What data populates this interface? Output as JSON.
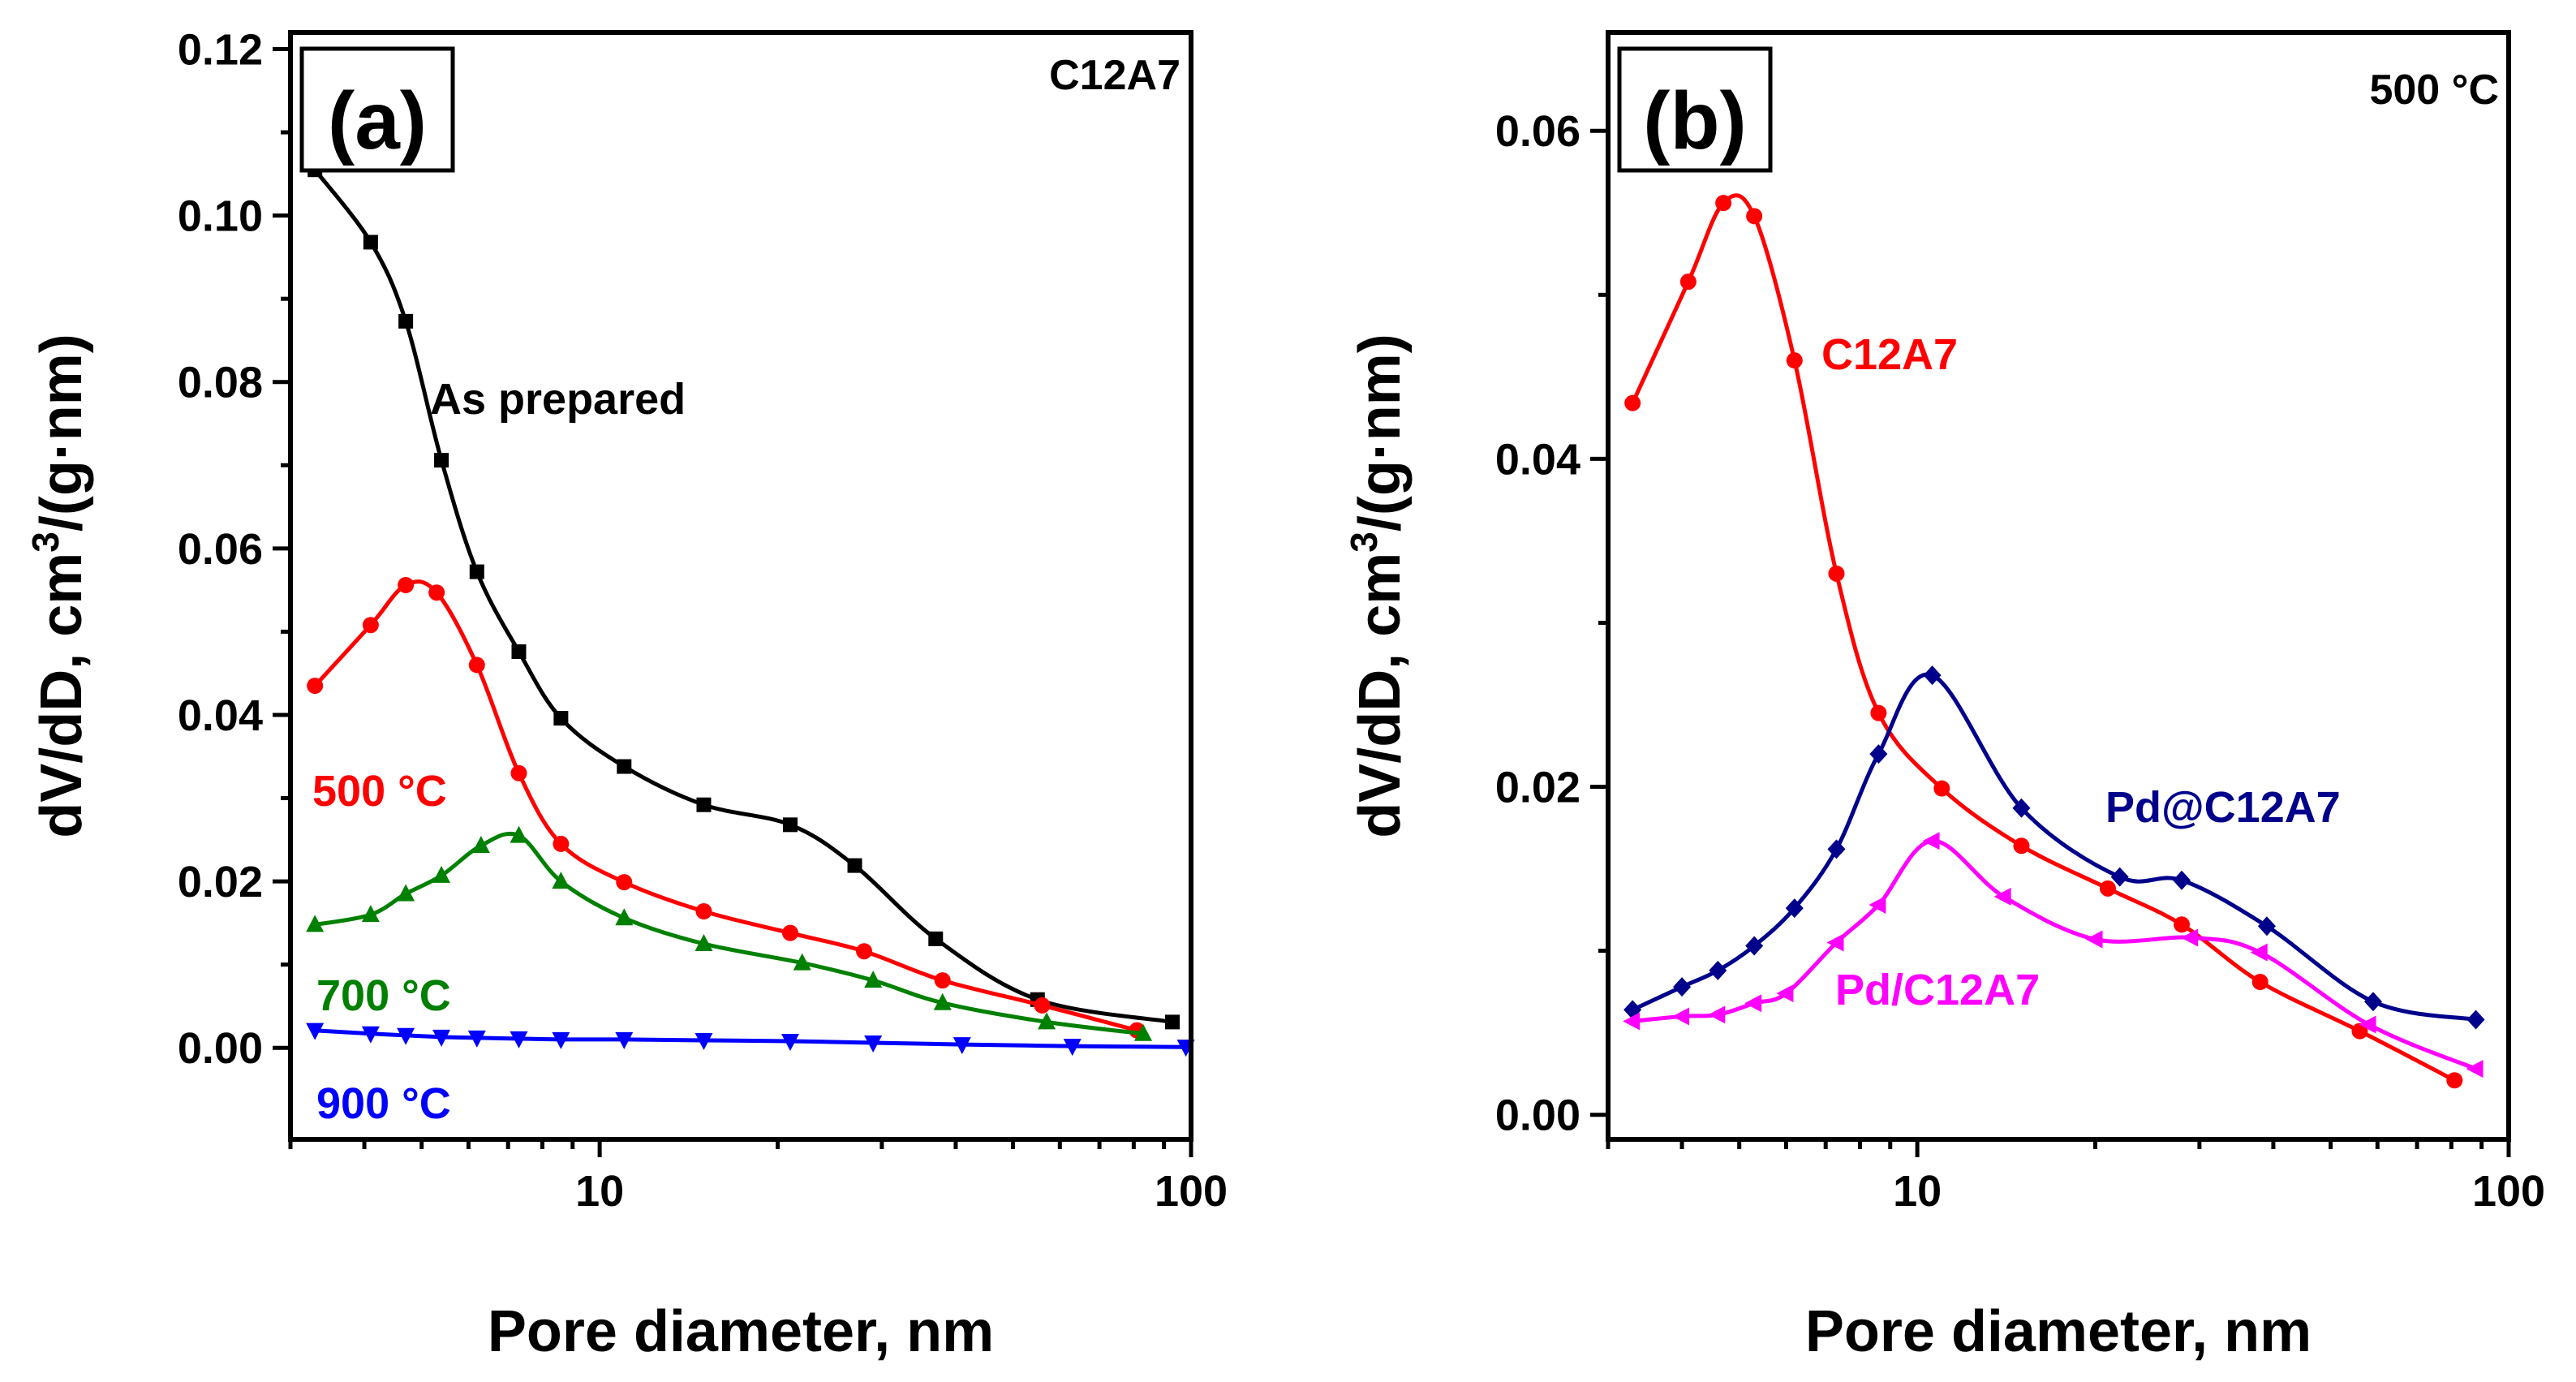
{
  "chart_data": [
    {
      "panel_label": "(a)",
      "corner_label": "C12A7",
      "type": "line",
      "xscale": "log",
      "xlabel": "Pore diameter, nm",
      "ylabel_main": "dV/dD, cm",
      "ylabel_sup": "3",
      "ylabel_tail": "/(g·nm)",
      "xlim": [
        3.0,
        100
      ],
      "ylim": [
        -0.011,
        0.122
      ],
      "xticks_major": [
        {
          "value": 10,
          "label": "10"
        },
        {
          "value": 100,
          "label": "100"
        }
      ],
      "yticks": [
        {
          "value": 0.0,
          "label": "0.00"
        },
        {
          "value": 0.02,
          "label": "0.02"
        },
        {
          "value": 0.04,
          "label": "0.04"
        },
        {
          "value": 0.06,
          "label": "0.06"
        },
        {
          "value": 0.08,
          "label": "0.08"
        },
        {
          "value": 0.1,
          "label": "0.10"
        },
        {
          "value": 0.12,
          "label": "0.12"
        }
      ],
      "series": [
        {
          "name": "As prepared",
          "color": "#000000",
          "marker": "square",
          "x": [
            3.3,
            4.1,
            4.7,
            5.4,
            6.2,
            7.3,
            8.6,
            11,
            15,
            21,
            27,
            37,
            55,
            93
          ],
          "y": [
            0.1055,
            0.0968,
            0.0873,
            0.0706,
            0.0572,
            0.0476,
            0.0396,
            0.0338,
            0.0292,
            0.0268,
            0.0219,
            0.0131,
            0.0058,
            0.0031
          ]
        },
        {
          "name": "500 °C",
          "color": "#ff0000",
          "marker": "circle",
          "x": [
            3.3,
            4.1,
            4.7,
            5.3,
            6.2,
            7.3,
            8.6,
            11,
            15,
            21,
            28,
            38,
            56,
            81
          ],
          "y": [
            0.0435,
            0.0508,
            0.0556,
            0.0547,
            0.046,
            0.033,
            0.0245,
            0.0199,
            0.0164,
            0.0138,
            0.0116,
            0.0081,
            0.0051,
            0.0021
          ]
        },
        {
          "name": "700 °C",
          "color": "#008000",
          "marker": "triangle-up",
          "x": [
            3.3,
            4.1,
            4.7,
            5.4,
            6.3,
            7.3,
            8.6,
            11,
            15,
            22,
            29,
            38,
            57,
            83
          ],
          "y": [
            0.0148,
            0.016,
            0.0185,
            0.0207,
            0.0243,
            0.0255,
            0.02,
            0.0156,
            0.0125,
            0.0102,
            0.0081,
            0.0054,
            0.0031,
            0.0017
          ]
        },
        {
          "name": "900 °C",
          "color": "#0000ff",
          "marker": "triangle-down",
          "x": [
            3.3,
            4.1,
            4.7,
            5.4,
            6.2,
            7.3,
            8.6,
            11,
            15,
            21,
            29,
            41,
            63,
            98
          ],
          "y": [
            0.0021,
            0.0017,
            0.0015,
            0.0013,
            0.0012,
            0.0011,
            0.001,
            0.001,
            0.0009,
            0.0008,
            0.0006,
            0.0004,
            0.0002,
            0.0001
          ]
        }
      ]
    },
    {
      "panel_label": "(b)",
      "corner_label": "500 °C",
      "type": "line",
      "xscale": "log",
      "xlabel": "Pore diameter, nm",
      "ylabel_main": "dV/dD, cm",
      "ylabel_sup": "3",
      "ylabel_tail": "/(g·nm)",
      "xlim": [
        3.0,
        100
      ],
      "ylim": [
        -0.0015,
        0.066
      ],
      "xticks_major": [
        {
          "value": 10,
          "label": "10"
        },
        {
          "value": 100,
          "label": "100"
        }
      ],
      "yticks": [
        {
          "value": 0.0,
          "label": "0.00"
        },
        {
          "value": 0.02,
          "label": "0.02"
        },
        {
          "value": 0.04,
          "label": "0.04"
        },
        {
          "value": 0.06,
          "label": "0.06"
        }
      ],
      "series": [
        {
          "name": "C12A7",
          "color": "#ff0000",
          "marker": "circle",
          "x": [
            3.3,
            4.1,
            4.7,
            5.3,
            6.2,
            7.3,
            8.6,
            11,
            15,
            21,
            28,
            38,
            56,
            81
          ],
          "y": [
            0.0434,
            0.0508,
            0.0556,
            0.0548,
            0.046,
            0.033,
            0.0245,
            0.0199,
            0.0164,
            0.0138,
            0.0116,
            0.0081,
            0.0051,
            0.0021
          ]
        },
        {
          "name": "Pd@C12A7",
          "color": "#00008b",
          "marker": "diamond",
          "x": [
            3.3,
            4.0,
            4.6,
            5.3,
            6.2,
            7.3,
            8.6,
            10.6,
            15,
            22,
            28,
            39,
            59,
            88
          ],
          "y": [
            0.0064,
            0.0078,
            0.0088,
            0.0103,
            0.0126,
            0.0162,
            0.022,
            0.0268,
            0.0187,
            0.0145,
            0.0143,
            0.0115,
            0.0069,
            0.0058
          ]
        },
        {
          "name": "Pd/C12A7",
          "color": "#ff00ff",
          "marker": "triangle-left",
          "x": [
            3.3,
            4.0,
            4.6,
            5.3,
            6.0,
            7.3,
            8.6,
            10.6,
            14,
            20,
            29,
            38,
            58,
            88
          ],
          "y": [
            0.0057,
            0.006,
            0.0061,
            0.0068,
            0.0074,
            0.0105,
            0.0128,
            0.0167,
            0.0133,
            0.0107,
            0.0108,
            0.0099,
            0.0055,
            0.0028
          ]
        }
      ]
    }
  ],
  "annotations": {
    "a_as_prepared": "As prepared",
    "a_500": "500 °C",
    "a_700": "700 °C",
    "a_900": "900 °C",
    "b_c12a7": "C12A7",
    "b_pd_at": "Pd@C12A7",
    "b_pd_slash": "Pd/C12A7"
  }
}
